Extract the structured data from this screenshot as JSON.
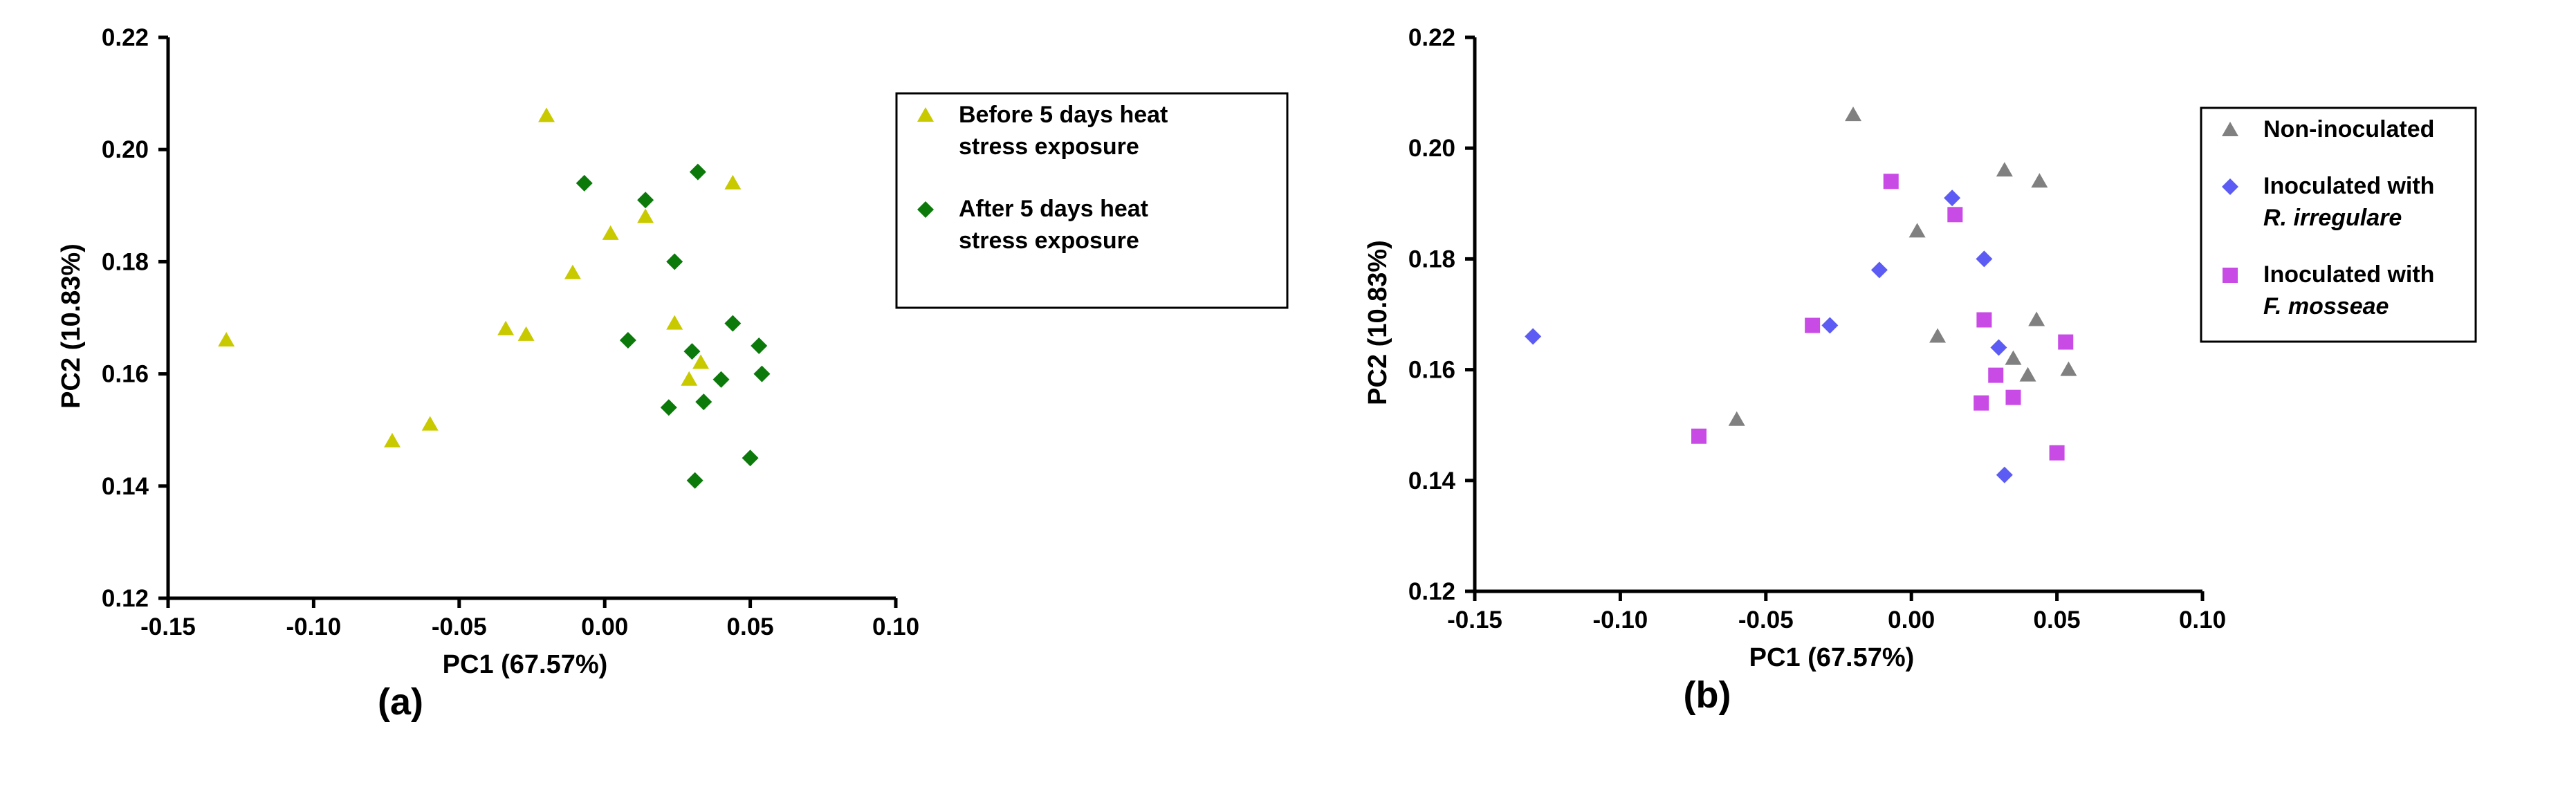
{
  "chart_data": [
    {
      "type": "scatter",
      "panel_label": "(a)",
      "xlabel": "PC1 (67.57%)",
      "ylabel": "PC2 (10.83%)",
      "xlim": [
        -0.15,
        0.1
      ],
      "ylim": [
        0.12,
        0.22
      ],
      "xticks": [
        -0.15,
        -0.1,
        -0.05,
        0.0,
        0.05,
        0.1
      ],
      "xtick_labels": [
        "-0.15",
        "-0.10",
        "-0.05",
        "0.00",
        "0.05",
        "0.10"
      ],
      "yticks": [
        0.12,
        0.14,
        0.16,
        0.18,
        0.2,
        0.22
      ],
      "ytick_labels": [
        "0.12",
        "0.14",
        "0.16",
        "0.18",
        "0.20",
        "0.22"
      ],
      "legend_position": "top-right, boxed",
      "series": [
        {
          "name": "Before 5 days heat stress exposure",
          "legend_lines": [
            "Before 5 days heat",
            "stress exposure"
          ],
          "marker": "triangle",
          "color": "#c9c900",
          "points": [
            [
              -0.13,
              0.166
            ],
            [
              -0.073,
              0.148
            ],
            [
              -0.06,
              0.151
            ],
            [
              -0.034,
              0.168
            ],
            [
              -0.027,
              0.167
            ],
            [
              -0.02,
              0.206
            ],
            [
              -0.011,
              0.178
            ],
            [
              0.002,
              0.185
            ],
            [
              0.014,
              0.188
            ],
            [
              0.024,
              0.169
            ],
            [
              0.029,
              0.159
            ],
            [
              0.033,
              0.162
            ],
            [
              0.044,
              0.194
            ]
          ]
        },
        {
          "name": "After 5 days heat stress exposure",
          "legend_lines": [
            "After 5 days heat",
            "stress exposure"
          ],
          "marker": "diamond",
          "color": "#0b7a0b",
          "points": [
            [
              -0.007,
              0.194
            ],
            [
              0.008,
              0.166
            ],
            [
              0.014,
              0.191
            ],
            [
              0.024,
              0.18
            ],
            [
              0.022,
              0.154
            ],
            [
              0.03,
              0.164
            ],
            [
              0.032,
              0.196
            ],
            [
              0.034,
              0.155
            ],
            [
              0.04,
              0.159
            ],
            [
              0.044,
              0.169
            ],
            [
              0.053,
              0.165
            ],
            [
              0.054,
              0.16
            ],
            [
              0.05,
              0.145
            ],
            [
              0.031,
              0.141
            ]
          ]
        }
      ]
    },
    {
      "type": "scatter",
      "panel_label": "(b)",
      "xlabel": "PC1 (67.57%)",
      "ylabel": "PC2 (10.83%)",
      "xlim": [
        -0.15,
        0.1
      ],
      "ylim": [
        0.12,
        0.22
      ],
      "xticks": [
        -0.15,
        -0.1,
        -0.05,
        0.0,
        0.05,
        0.1
      ],
      "xtick_labels": [
        "-0.15",
        "-0.10",
        "-0.05",
        "0.00",
        "0.05",
        "0.10"
      ],
      "yticks": [
        0.12,
        0.14,
        0.16,
        0.18,
        0.2,
        0.22
      ],
      "ytick_labels": [
        "0.12",
        "0.14",
        "0.16",
        "0.18",
        "0.20",
        "0.22"
      ],
      "legend_position": "top-right, boxed",
      "series": [
        {
          "name": "Non-inoculated",
          "legend_lines": [
            "Non-inoculated"
          ],
          "marker": "triangle",
          "color": "#808080",
          "points": [
            [
              -0.06,
              0.151
            ],
            [
              -0.02,
              0.206
            ],
            [
              0.002,
              0.185
            ],
            [
              0.009,
              0.166
            ],
            [
              0.032,
              0.196
            ],
            [
              0.035,
              0.162
            ],
            [
              0.04,
              0.159
            ],
            [
              0.043,
              0.169
            ],
            [
              0.044,
              0.194
            ],
            [
              0.054,
              0.16
            ]
          ]
        },
        {
          "name": "Inoculated with R. irregulare",
          "legend_lines": [
            "Inoculated with",
            "R. irregulare"
          ],
          "legend_italic_line": 1,
          "marker": "diamond",
          "color": "#5c5cf5",
          "points": [
            [
              -0.13,
              0.166
            ],
            [
              -0.028,
              0.168
            ],
            [
              -0.011,
              0.178
            ],
            [
              0.014,
              0.191
            ],
            [
              0.025,
              0.18
            ],
            [
              0.03,
              0.164
            ],
            [
              0.032,
              0.141
            ]
          ]
        },
        {
          "name": "Inoculated with F. mosseae",
          "legend_lines": [
            "Inoculated with",
            "F. mosseae"
          ],
          "legend_italic_line": 1,
          "marker": "square",
          "color": "#c94be6",
          "points": [
            [
              -0.073,
              0.148
            ],
            [
              -0.034,
              0.168
            ],
            [
              -0.007,
              0.194
            ],
            [
              0.015,
              0.188
            ],
            [
              0.024,
              0.154
            ],
            [
              0.025,
              0.169
            ],
            [
              0.029,
              0.159
            ],
            [
              0.035,
              0.155
            ],
            [
              0.05,
              0.145
            ],
            [
              0.053,
              0.165
            ]
          ]
        }
      ]
    }
  ]
}
